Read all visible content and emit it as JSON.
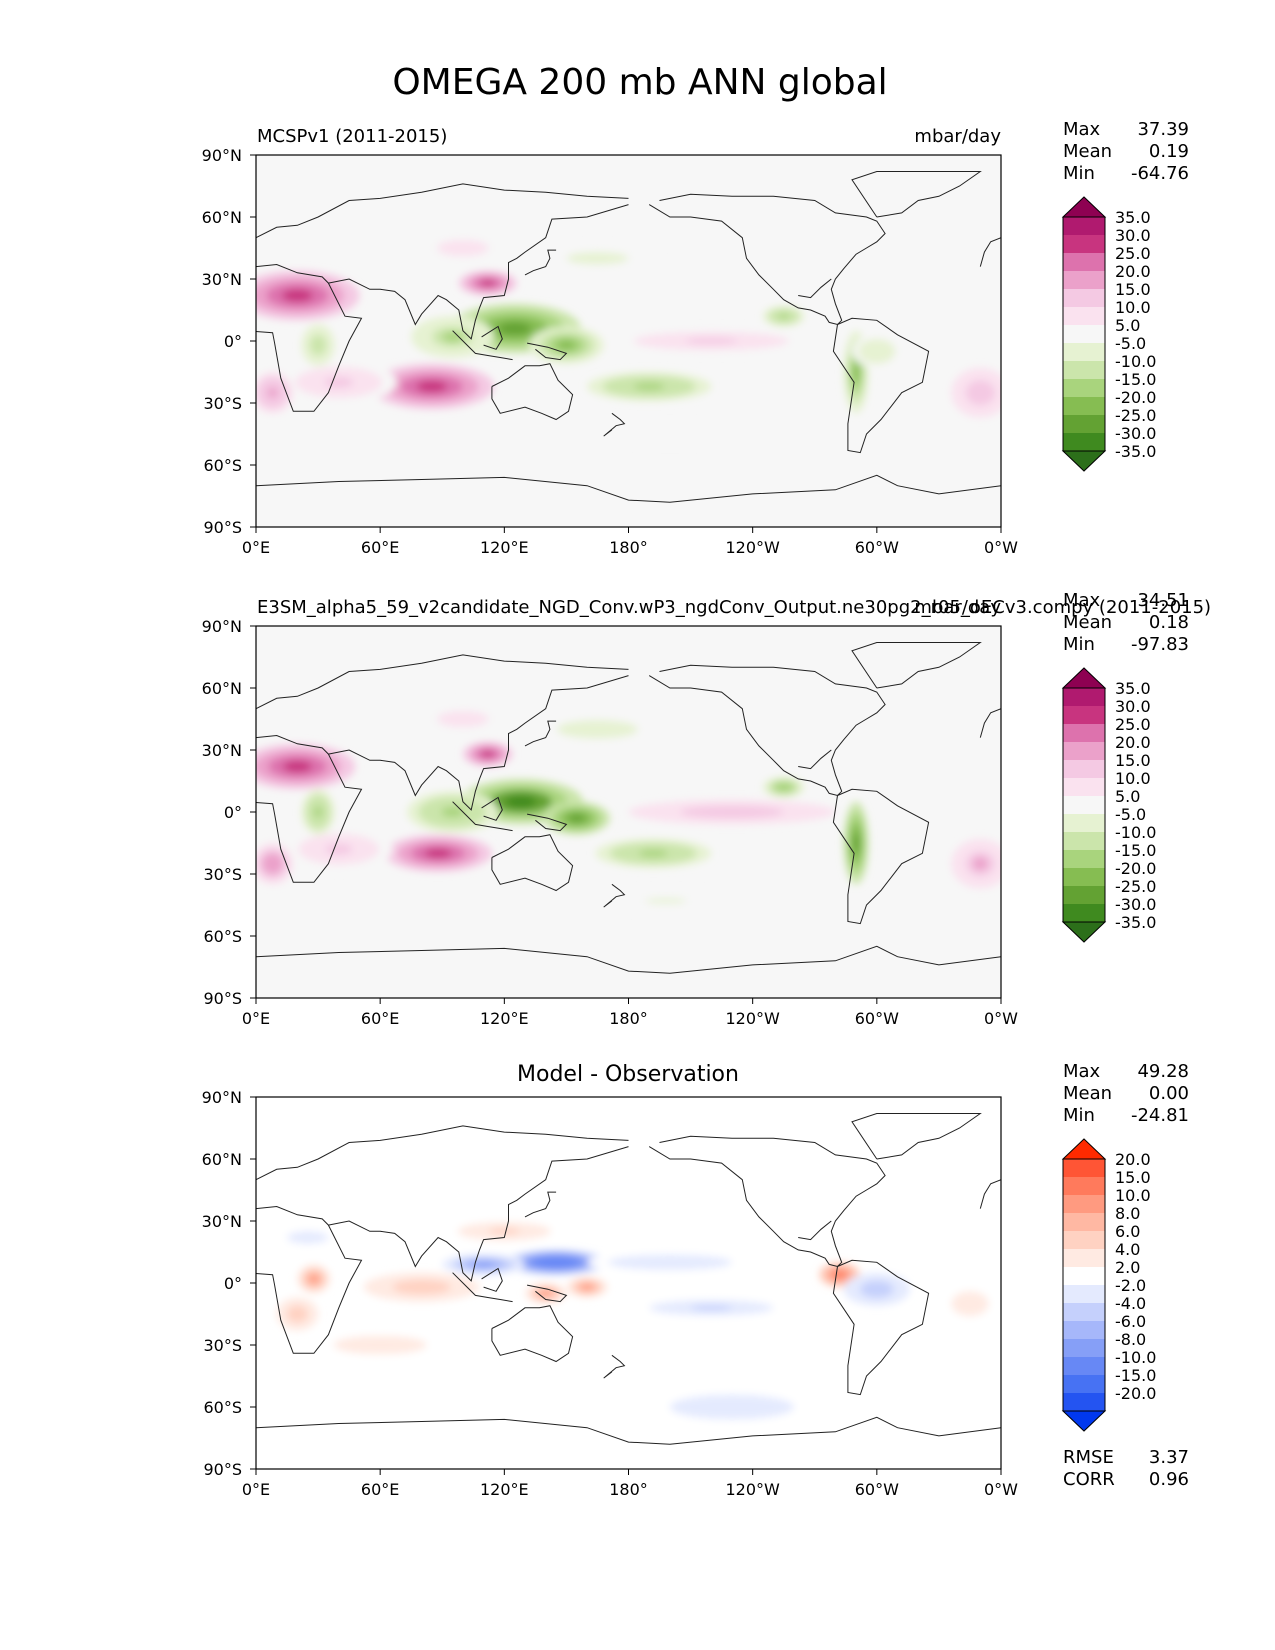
{
  "figure": {
    "title": "OMEGA 200 mb ANN global",
    "units": "mbar/day"
  },
  "colors": {
    "land_outline": "#222222",
    "axis": "#000000",
    "div_purple_green": [
      "#8e0152",
      "#b01a6f",
      "#c8347f",
      "#dd72ad",
      "#eba1ca",
      "#f4c9e3",
      "#fae2ef",
      "#f7f7f7",
      "#e6f2d2",
      "#cbe5ab",
      "#a9d47d",
      "#86bd52",
      "#63a233",
      "#3f8a1f",
      "#2c6f1a"
    ],
    "div_red_blue": [
      "#ff2a00",
      "#ff5535",
      "#ff7a5c",
      "#ff9a80",
      "#ffb8a3",
      "#ffd2c2",
      "#ffeae2",
      "#ffffff",
      "#e4eafe",
      "#c5d0fc",
      "#a6b7fa",
      "#869ff7",
      "#6788f5",
      "#4772f3",
      "#2454f1",
      "#0038ef"
    ]
  },
  "chart_data": [
    {
      "type": "heatmap",
      "panel": "reference",
      "title_left": "MCSPv1 (2011-2015)",
      "title_right": "mbar/day",
      "xlabel": "",
      "ylabel": "",
      "xlim": [
        0,
        360
      ],
      "ylim": [
        -90,
        90
      ],
      "xticks": [
        "0°E",
        "60°E",
        "120°E",
        "180°",
        "120°W",
        "60°W",
        "0°W"
      ],
      "yticks": [
        "90°N",
        "60°N",
        "30°N",
        "0°",
        "30°S",
        "60°S",
        "90°S"
      ],
      "stats": {
        "Max": "37.39",
        "Mean": "0.19",
        "Min": "-64.76"
      },
      "colorbar": {
        "palette": "div_purple_green",
        "levels": [
          "35.0",
          "30.0",
          "25.0",
          "20.0",
          "15.0",
          "10.0",
          "5.0",
          "-5.0",
          "-10.0",
          "-15.0",
          "-20.0",
          "-25.0",
          "-30.0",
          "-35.0"
        ]
      },
      "features": [
        {
          "lon": 20,
          "lat": 22,
          "w": 30,
          "h": 12,
          "v": 28
        },
        {
          "lon": 85,
          "lat": -22,
          "w": 30,
          "h": 11,
          "v": 28
        },
        {
          "lon": 112,
          "lat": 28,
          "w": 14,
          "h": 6,
          "v": 30
        },
        {
          "lon": 40,
          "lat": -20,
          "w": 28,
          "h": 10,
          "v": 12
        },
        {
          "lon": 8,
          "lat": -25,
          "w": 10,
          "h": 10,
          "v": 18
        },
        {
          "lon": 125,
          "lat": 6,
          "w": 32,
          "h": 12,
          "v": -30
        },
        {
          "lon": 150,
          "lat": -2,
          "w": 18,
          "h": 9,
          "v": -22
        },
        {
          "lon": 190,
          "lat": -22,
          "w": 30,
          "h": 7,
          "v": -18
        },
        {
          "lon": 95,
          "lat": 2,
          "w": 20,
          "h": 10,
          "v": -16
        },
        {
          "lon": 30,
          "lat": -2,
          "w": 8,
          "h": 10,
          "v": -14
        },
        {
          "lon": 255,
          "lat": 12,
          "w": 10,
          "h": 5,
          "v": -18
        },
        {
          "lon": 290,
          "lat": -15,
          "w": 6,
          "h": 20,
          "v": -24
        },
        {
          "lon": 300,
          "lat": -5,
          "w": 12,
          "h": 8,
          "v": -10
        },
        {
          "lon": 220,
          "lat": 0,
          "w": 50,
          "h": 6,
          "v": 12
        },
        {
          "lon": 350,
          "lat": -25,
          "w": 14,
          "h": 12,
          "v": 14
        },
        {
          "lon": 165,
          "lat": 40,
          "w": 30,
          "h": 6,
          "v": -8
        },
        {
          "lon": 200,
          "lat": -45,
          "w": 40,
          "h": 5,
          "v": -5
        },
        {
          "lon": 100,
          "lat": 45,
          "w": 25,
          "h": 8,
          "v": 8
        }
      ]
    },
    {
      "type": "heatmap",
      "panel": "test",
      "title_left": "E3SM_alpha5_59_v2candidate_NGD_Conv.wP3_ngdConv_Output.ne30pg2_r05_oECv3.compy (2011-2015)",
      "title_right": "mbar/day",
      "xlabel": "",
      "ylabel": "",
      "xlim": [
        0,
        360
      ],
      "ylim": [
        -90,
        90
      ],
      "xticks": [
        "0°E",
        "60°E",
        "120°E",
        "180°",
        "120°W",
        "60°W",
        "0°W"
      ],
      "yticks": [
        "90°N",
        "60°N",
        "30°N",
        "0°",
        "30°S",
        "60°S",
        "90°S"
      ],
      "stats": {
        "Max": "34.51",
        "Mean": "0.18",
        "Min": "-97.83"
      },
      "colorbar": {
        "palette": "div_purple_green",
        "levels": [
          "35.0",
          "30.0",
          "25.0",
          "20.0",
          "15.0",
          "10.0",
          "5.0",
          "-5.0",
          "-10.0",
          "-15.0",
          "-20.0",
          "-25.0",
          "-30.0",
          "-35.0"
        ]
      },
      "features": [
        {
          "lon": 20,
          "lat": 22,
          "w": 28,
          "h": 11,
          "v": 27
        },
        {
          "lon": 88,
          "lat": -20,
          "w": 26,
          "h": 9,
          "v": 30
        },
        {
          "lon": 112,
          "lat": 28,
          "w": 12,
          "h": 6,
          "v": 26
        },
        {
          "lon": 40,
          "lat": -18,
          "w": 26,
          "h": 10,
          "v": 12
        },
        {
          "lon": 8,
          "lat": -25,
          "w": 10,
          "h": 10,
          "v": 20
        },
        {
          "lon": 128,
          "lat": 5,
          "w": 30,
          "h": 11,
          "v": -34
        },
        {
          "lon": 155,
          "lat": -3,
          "w": 16,
          "h": 8,
          "v": -26
        },
        {
          "lon": 192,
          "lat": -20,
          "w": 28,
          "h": 7,
          "v": -18
        },
        {
          "lon": 95,
          "lat": 0,
          "w": 22,
          "h": 10,
          "v": -18
        },
        {
          "lon": 30,
          "lat": 0,
          "w": 8,
          "h": 11,
          "v": -18
        },
        {
          "lon": 255,
          "lat": 12,
          "w": 10,
          "h": 5,
          "v": -20
        },
        {
          "lon": 290,
          "lat": -15,
          "w": 6,
          "h": 20,
          "v": -28
        },
        {
          "lon": 230,
          "lat": 0,
          "w": 50,
          "h": 6,
          "v": 14
        },
        {
          "lon": 350,
          "lat": -25,
          "w": 14,
          "h": 12,
          "v": 16
        },
        {
          "lon": 165,
          "lat": 40,
          "w": 26,
          "h": 6,
          "v": -10
        },
        {
          "lon": 198,
          "lat": -43,
          "w": 40,
          "h": 5,
          "v": -6
        },
        {
          "lon": 100,
          "lat": 45,
          "w": 25,
          "h": 8,
          "v": 8
        }
      ]
    },
    {
      "type": "heatmap",
      "panel": "difference",
      "title_center": "Model - Observation",
      "xlabel": "",
      "ylabel": "",
      "xlim": [
        0,
        360
      ],
      "ylim": [
        -90,
        90
      ],
      "xticks": [
        "0°E",
        "60°E",
        "120°E",
        "180°",
        "120°W",
        "60°W",
        "0°W"
      ],
      "yticks": [
        "90°N",
        "60°N",
        "30°N",
        "0°",
        "30°S",
        "60°S",
        "90°S"
      ],
      "stats": {
        "Max": "49.28",
        "Mean": "0.00",
        "Min": "-24.81"
      },
      "metrics": {
        "RMSE": "3.37",
        "CORR": "0.96"
      },
      "colorbar": {
        "palette": "div_red_blue",
        "levels": [
          "20.0",
          "15.0",
          "10.0",
          "8.0",
          "6.0",
          "4.0",
          "2.0",
          "-2.0",
          "-4.0",
          "-6.0",
          "-8.0",
          "-10.0",
          "-15.0",
          "-20.0"
        ]
      },
      "features": [
        {
          "lon": 28,
          "lat": 2,
          "w": 8,
          "h": 7,
          "v": 10
        },
        {
          "lon": 145,
          "lat": 10,
          "w": 24,
          "h": 6,
          "v": -15
        },
        {
          "lon": 110,
          "lat": 9,
          "w": 20,
          "h": 5,
          "v": -10
        },
        {
          "lon": 160,
          "lat": -2,
          "w": 10,
          "h": 5,
          "v": 10
        },
        {
          "lon": 140,
          "lat": -5,
          "w": 10,
          "h": 5,
          "v": 10
        },
        {
          "lon": 282,
          "lat": 4,
          "w": 10,
          "h": 6,
          "v": 12
        },
        {
          "lon": 80,
          "lat": -2,
          "w": 28,
          "h": 7,
          "v": 6
        },
        {
          "lon": 220,
          "lat": -12,
          "w": 40,
          "h": 5,
          "v": -5
        },
        {
          "lon": 200,
          "lat": 10,
          "w": 40,
          "h": 5,
          "v": -4
        },
        {
          "lon": 300,
          "lat": -3,
          "w": 16,
          "h": 8,
          "v": -6
        },
        {
          "lon": 60,
          "lat": -30,
          "w": 30,
          "h": 6,
          "v": 4
        },
        {
          "lon": 120,
          "lat": 25,
          "w": 30,
          "h": 6,
          "v": 5
        },
        {
          "lon": 20,
          "lat": -15,
          "w": 10,
          "h": 8,
          "v": 6
        },
        {
          "lon": 25,
          "lat": 22,
          "w": 20,
          "h": 6,
          "v": -3
        },
        {
          "lon": 230,
          "lat": -60,
          "w": 40,
          "h": 8,
          "v": -4
        },
        {
          "lon": 345,
          "lat": -10,
          "w": 12,
          "h": 8,
          "v": 4
        },
        {
          "lon": 90,
          "lat": -65,
          "w": 40,
          "h": 4,
          "v": -2
        }
      ]
    }
  ]
}
